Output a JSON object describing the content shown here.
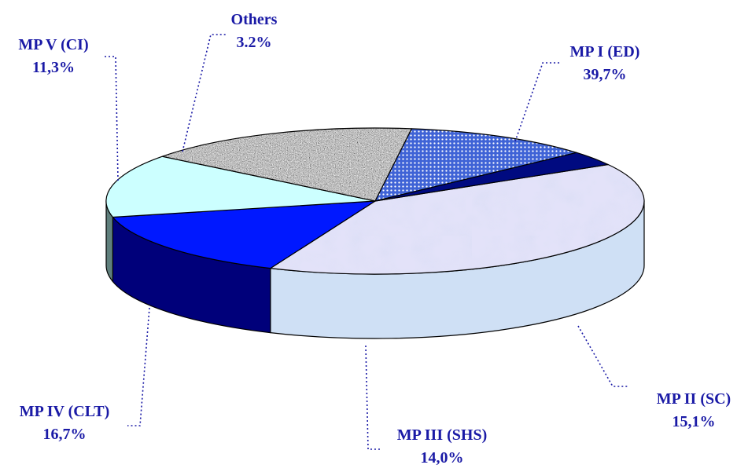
{
  "chart_data": {
    "type": "pie",
    "title": "",
    "slices": [
      {
        "label": "MP I (ED)",
        "display_value": "39,7%",
        "value": 39.7,
        "top_fill": "url(#patPastel)",
        "side_fill": "#cfe0f5",
        "label_color": "#1a1aa6",
        "pct_color": "#1a1aa6"
      },
      {
        "label": "MP II (SC)",
        "display_value": "15,1%",
        "value": 15.1,
        "top_fill": "#0018ff",
        "side_fill": "#00007a",
        "label_color": "#1a1aa6",
        "pct_color": "#1a1aa6"
      },
      {
        "label": "MP III (SHS)",
        "display_value": "14,0%",
        "value": 14.0,
        "top_fill": "#ccffff",
        "side_fill": "#5f7f7c",
        "label_color": "#1a1aa6",
        "pct_color": "#1a1aa6"
      },
      {
        "label": "MP IV (CLT)",
        "display_value": "16,7%",
        "value": 16.7,
        "top_fill": "url(#patGranite)",
        "side_fill": "url(#patGranite)",
        "label_color": "#1a1aa6",
        "pct_color": "#1a1aa6"
      },
      {
        "label": "MP V (CI)",
        "display_value": "11,3%",
        "value": 11.3,
        "top_fill": "url(#patDots)",
        "side_fill": "#3a5cd0",
        "label_color": "#1a1aa6",
        "pct_color": "#1a1aa6"
      },
      {
        "label": "Others",
        "display_value": "3.2%",
        "value": 3.2,
        "top_fill": "#000a80",
        "side_fill": "#000050",
        "label_color": "#1a1aa6",
        "pct_color": "#1a1aa6"
      }
    ],
    "legend": "none"
  }
}
